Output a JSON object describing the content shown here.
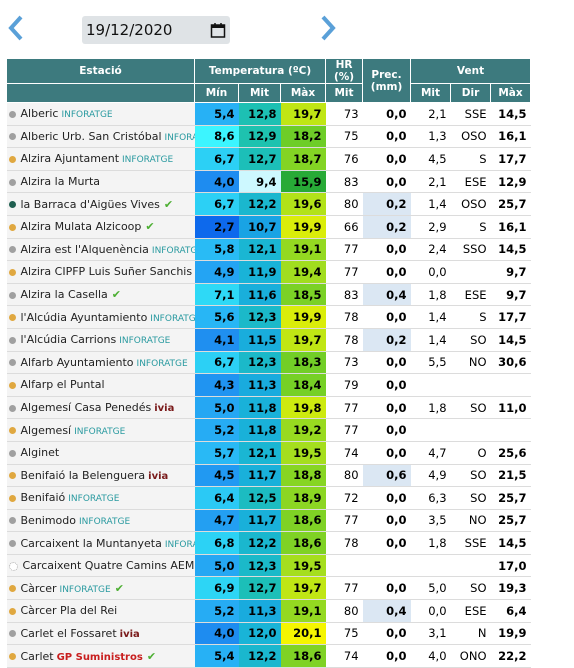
{
  "header": {
    "date": "19/12/2020"
  },
  "table": {
    "columns": {
      "station": "Estació",
      "temperature": "Temperatura (ºC)",
      "humidity": "HR (%)",
      "precipitation": "Prec. (mm)",
      "wind": "Vent"
    },
    "subcolumns": [
      "Mín",
      "Mit",
      "Màx",
      "Mit",
      "Mit",
      "Dir",
      "Màx"
    ],
    "rows": [
      {
        "station": "Alberic",
        "tag": "INFORATGE",
        "dot": "#a0a0a0",
        "cells": [
          "5,4",
          "12,8",
          "19,7",
          "73",
          "0,0",
          "2,1",
          "SSE",
          "14,5"
        ]
      },
      {
        "station": "Alberic Urb. San Cristóbal",
        "tag": "INFORATGE",
        "dot": "#a0a0a0",
        "cells": [
          "8,6",
          "12,9",
          "18,2",
          "75",
          "0,0",
          "1,3",
          "OSO",
          "16,1"
        ]
      },
      {
        "station": "Alzira Ajuntament",
        "tag": "INFORATGE",
        "dot": "#e0a840",
        "cells": [
          "6,7",
          "12,7",
          "18,7",
          "76",
          "0,0",
          "4,5",
          "S",
          "17,7"
        ]
      },
      {
        "station": "Alzira la Murta",
        "dot": "#a0a0a0",
        "cells": [
          "4,0",
          "9,4",
          "15,9",
          "83",
          "0,0",
          "2,1",
          "ESE",
          "12,9"
        ]
      },
      {
        "station": "la Barraca d'Aigües Vives",
        "check": true,
        "dot": "#1f5f50",
        "cells": [
          "6,7",
          "12,2",
          "19,6",
          "80",
          "0,2",
          "1,4",
          "OSO",
          "25,7"
        ]
      },
      {
        "station": "Alzira Mulata Alzicoop",
        "check": true,
        "dot": "#e0a840",
        "cells": [
          "2,7",
          "10,7",
          "19,9",
          "66",
          "0,2",
          "2,9",
          "S",
          "16,1"
        ]
      },
      {
        "station": "Alzira est l'Alquenència",
        "tag": "INFORATGE",
        "dot": "#a0a0a0",
        "cells": [
          "5,8",
          "12,1",
          "19,1",
          "77",
          "0,0",
          "2,4",
          "SSO",
          "14,5"
        ]
      },
      {
        "station": "Alzira CIPFP Luis Suñer Sanchis",
        "dot": "#e0a840",
        "cells": [
          "4,9",
          "11,9",
          "19,4",
          "77",
          "0,0",
          "0,0",
          null,
          "9,7"
        ]
      },
      {
        "station": "Alzira la Casella",
        "check": true,
        "dot": "#a0a0a0",
        "cells": [
          "7,1",
          "11,6",
          "18,5",
          "83",
          "0,4",
          "1,8",
          "ESE",
          "9,7"
        ]
      },
      {
        "station": "l'Alcúdia Ayuntamiento",
        "tag": "INFORATGE",
        "dot": "#e0a840",
        "cells": [
          "5,6",
          "12,3",
          "19,9",
          "78",
          "0,0",
          "1,4",
          "S",
          "17,7"
        ]
      },
      {
        "station": "l'Alcúdia Carrions",
        "tag": "INFORATGE",
        "dot": "#a0a0a0",
        "cells": [
          "4,1",
          "11,5",
          "19,7",
          "78",
          "0,2",
          "1,4",
          "SO",
          "14,5"
        ]
      },
      {
        "station": "Alfarb Ayuntamiento",
        "tag": "INFORATGE",
        "dot": "#a0a0a0",
        "cells": [
          "6,7",
          "12,3",
          "18,3",
          "73",
          "0,0",
          "5,5",
          "NO",
          "30,6"
        ]
      },
      {
        "station": "Alfarp el Puntal",
        "dot": "#e0a840",
        "cells": [
          "4,3",
          "11,3",
          "18,4",
          "79",
          "0,0",
          null,
          null,
          null
        ]
      },
      {
        "station": "Algemesí Casa Penedés",
        "tag": "ivia",
        "dot": "#a0a0a0",
        "cells": [
          "5,0",
          "11,8",
          "19,8",
          "77",
          "0,0",
          "1,8",
          "SO",
          "11,0"
        ]
      },
      {
        "station": "Algemesí",
        "tag": "INFORATGE",
        "dot": "#e0a840",
        "cells": [
          "5,2",
          "11,8",
          "19,2",
          "77",
          "0,0",
          null,
          null,
          null
        ]
      },
      {
        "station": "Alginet",
        "dot": "#a0a0a0",
        "cells": [
          "5,7",
          "12,1",
          "19,5",
          "74",
          "0,0",
          "4,7",
          "O",
          "25,6"
        ]
      },
      {
        "station": "Benifaió la Belenguera",
        "tag": "ivia",
        "dot": "#e0a840",
        "cells": [
          "4,5",
          "11,7",
          "18,8",
          "80",
          "0,6",
          "4,9",
          "SO",
          "21,5"
        ]
      },
      {
        "station": "Benifaió",
        "tag": "INFORATGE",
        "dot": "#e0a840",
        "cells": [
          "6,4",
          "12,5",
          "18,9",
          "72",
          "0,0",
          "6,3",
          "SO",
          "25,7"
        ]
      },
      {
        "station": "Benimodo",
        "tag": "INFORATGE",
        "dot": "#a0a0a0",
        "cells": [
          "4,7",
          "11,7",
          "18,6",
          "77",
          "0,0",
          "3,5",
          "NO",
          "25,7"
        ]
      },
      {
        "station": "Carcaixent la Muntanyeta",
        "tag": "INFORATGE",
        "dot": "#a0a0a0",
        "cells": [
          "6,8",
          "12,2",
          "18,6",
          "78",
          "0,0",
          "1,8",
          "SSE",
          "14,5"
        ]
      },
      {
        "station": "Carcaixent Quatre Camins AEMET",
        "dot": "#ffffff",
        "cells": [
          "5,0",
          "12,3",
          "19,5",
          null,
          null,
          null,
          null,
          "17,0"
        ]
      },
      {
        "station": "Càrcer",
        "tag": "INFORATGE",
        "check": true,
        "dot": "#e0a840",
        "cells": [
          "6,9",
          "12,7",
          "19,7",
          "77",
          "0,0",
          "5,0",
          "SO",
          "19,3"
        ]
      },
      {
        "station": "Càrcer Pla del Rei",
        "dot": "#e0a840",
        "cells": [
          "5,2",
          "11,3",
          "19,1",
          "80",
          "0,4",
          "0,0",
          "ESE",
          "6,4"
        ]
      },
      {
        "station": "Carlet el Fossaret",
        "tag": "ivia",
        "dot": "#a0a0a0",
        "cells": [
          "4,0",
          "12,0",
          "20,1",
          "75",
          "0,0",
          "3,1",
          "N",
          "19,9"
        ]
      },
      {
        "station": "Carlet",
        "tag": "GP Suministros",
        "check": true,
        "dot": "#e0a840",
        "cells": [
          "5,4",
          "12,2",
          "18,6",
          "74",
          "0,0",
          "4,0",
          "ONO",
          "22,2"
        ]
      }
    ]
  }
}
